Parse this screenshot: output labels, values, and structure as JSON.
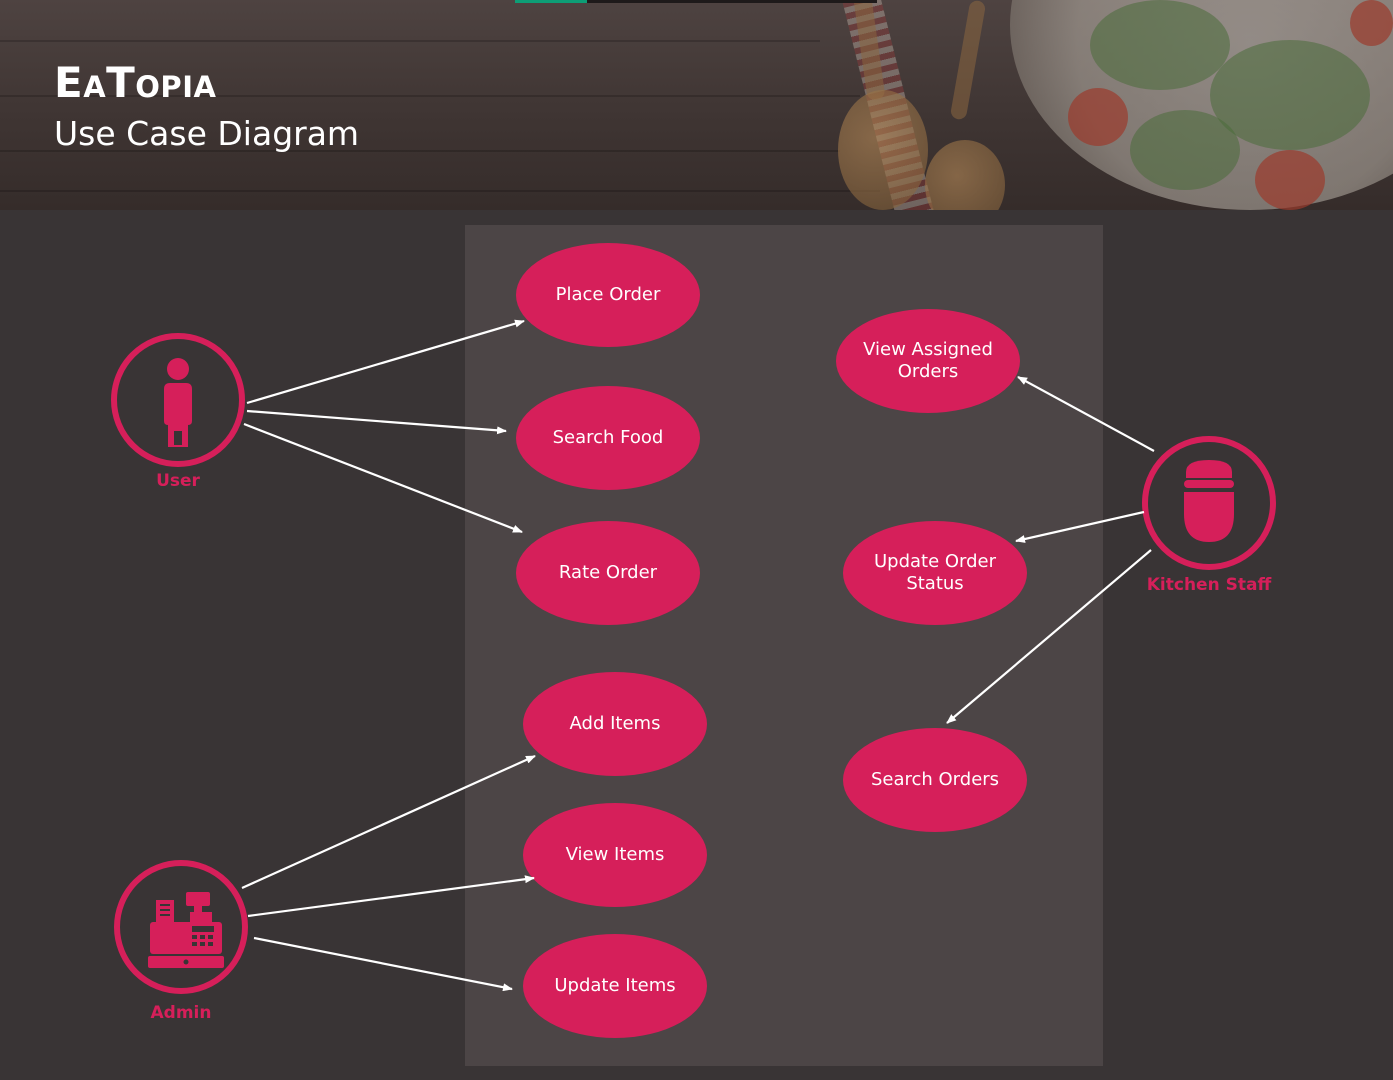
{
  "header": {
    "app_title": "EaTopia",
    "subtitle": "Use Case Diagram",
    "progress_fraction": 0.2
  },
  "actors": {
    "user": {
      "label": "User",
      "icon": "person-icon"
    },
    "admin": {
      "label": "Admin",
      "icon": "cash-register-icon"
    },
    "kitchen_staff": {
      "label": "Kitchen Staff",
      "icon": "chef-icon"
    }
  },
  "use_cases": {
    "place_order": "Place Order",
    "search_food": "Search Food",
    "rate_order": "Rate Order",
    "add_items": "Add Items",
    "view_items": "View Items",
    "update_items": "Update Items",
    "view_assigned_orders": "View Assigned Orders",
    "update_order_status": "Update Order Status",
    "search_orders": "Search Orders"
  },
  "relations": [
    {
      "from": "User",
      "to": "Place Order"
    },
    {
      "from": "User",
      "to": "Search Food"
    },
    {
      "from": "User",
      "to": "Rate Order"
    },
    {
      "from": "Admin",
      "to": "Add Items"
    },
    {
      "from": "Admin",
      "to": "View Items"
    },
    {
      "from": "Admin",
      "to": "Update Items"
    },
    {
      "from": "Kitchen Staff",
      "to": "View Assigned Orders"
    },
    {
      "from": "Kitchen Staff",
      "to": "Update Order Status"
    },
    {
      "from": "Kitchen Staff",
      "to": "Search Orders"
    }
  ],
  "colors": {
    "accent": "#d61f5a",
    "background": "#393435",
    "system_boundary": "#4c4546",
    "progress": "#0d9e76",
    "arrow": "#ffffff"
  }
}
